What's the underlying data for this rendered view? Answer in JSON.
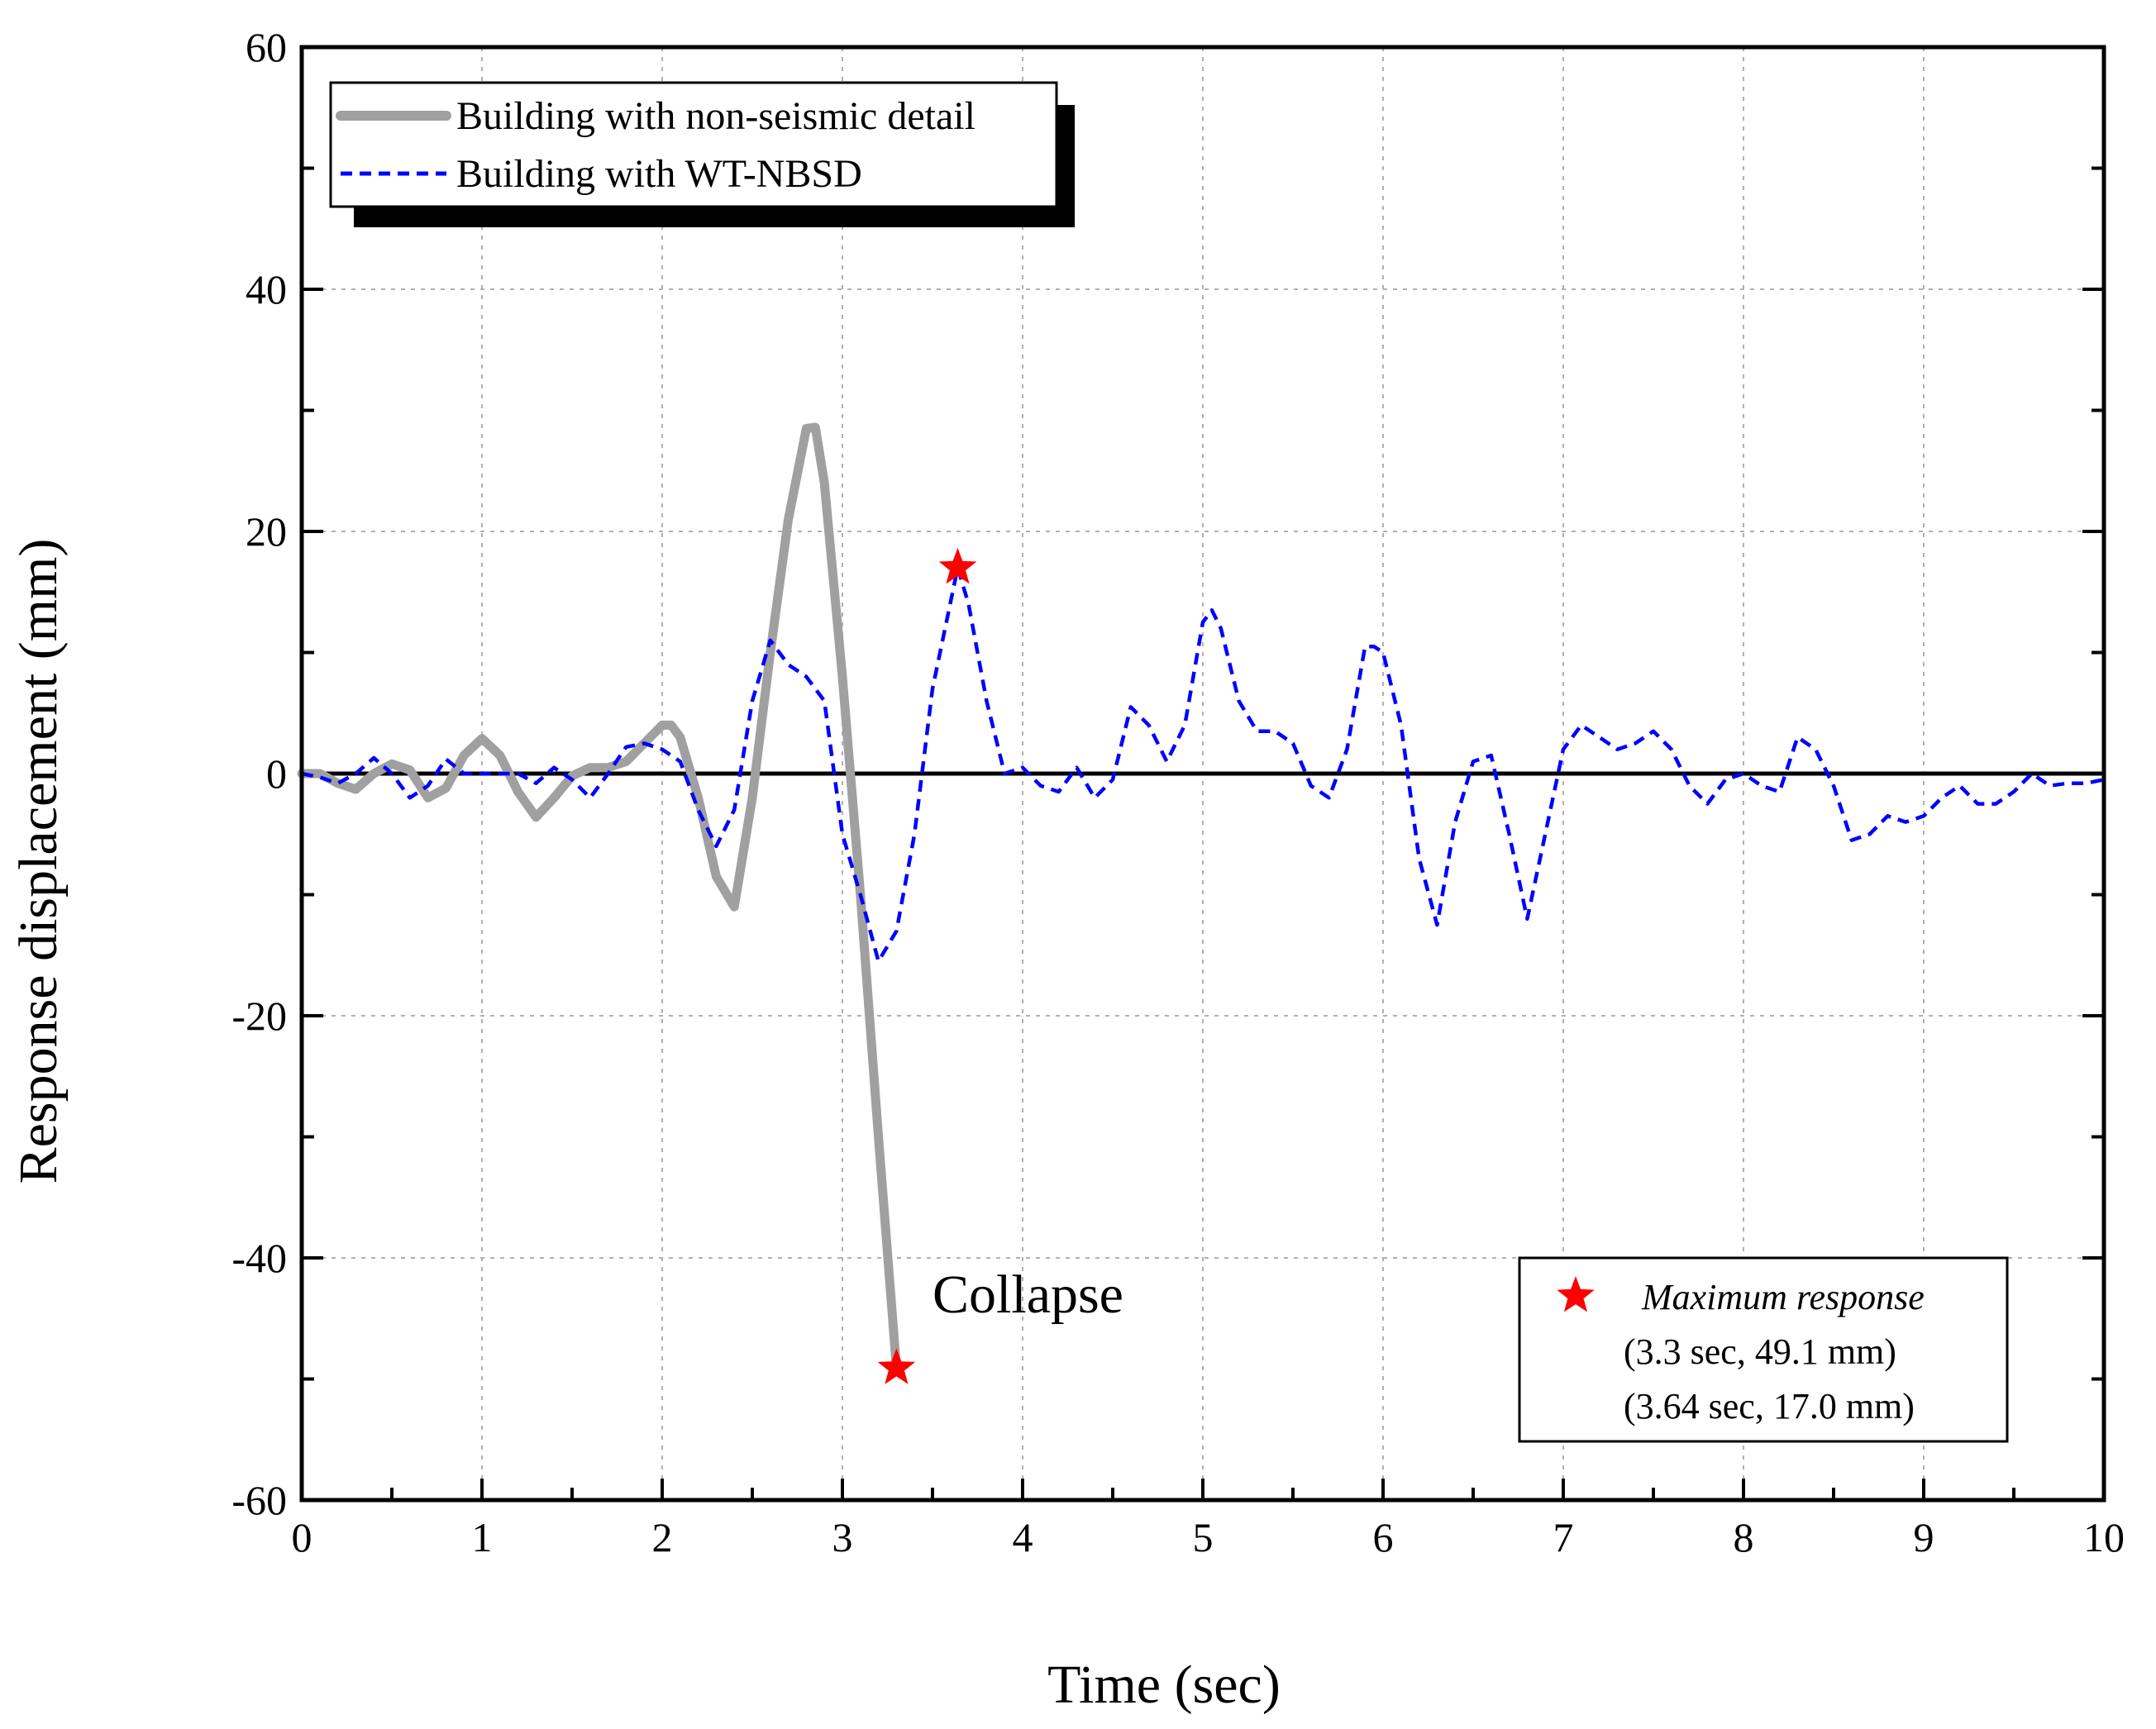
{
  "chart_data": {
    "type": "line",
    "title": "",
    "xlabel": "Time (sec)",
    "ylabel": "Response displacement (mm)",
    "xlim": [
      0,
      10
    ],
    "ylim": [
      -60,
      60
    ],
    "x_ticks": [
      0,
      1,
      2,
      3,
      4,
      5,
      6,
      7,
      8,
      9,
      10
    ],
    "y_ticks": [
      -60,
      -40,
      -20,
      0,
      20,
      40,
      60
    ],
    "x_tick_labels": [
      "0",
      "1",
      "2",
      "3",
      "4",
      "5",
      "6",
      "7",
      "8",
      "9",
      "10"
    ],
    "y_tick_labels": [
      "-60",
      "-40",
      "-20",
      "0",
      "20",
      "40",
      "60"
    ],
    "grid": true,
    "zero_line": true,
    "legend_position": "top-left",
    "series": [
      {
        "name": "Building with non-seismic detail",
        "color": "#a0a0a0",
        "style": "solid",
        "x": [
          0,
          0.1,
          0.2,
          0.3,
          0.4,
          0.5,
          0.6,
          0.7,
          0.8,
          0.9,
          1.0,
          1.1,
          1.2,
          1.3,
          1.4,
          1.5,
          1.6,
          1.7,
          1.8,
          1.9,
          2.0,
          2.05,
          2.1,
          2.2,
          2.3,
          2.4,
          2.5,
          2.6,
          2.7,
          2.8,
          2.85,
          2.9,
          3.0,
          3.1,
          3.2,
          3.3
        ],
        "y": [
          0,
          0,
          -0.8,
          -1.3,
          0,
          0.8,
          0.3,
          -2.0,
          -1.2,
          1.5,
          2.9,
          1.5,
          -1.5,
          -3.6,
          -2.0,
          -0.2,
          0.5,
          0.5,
          1.0,
          2.5,
          4.0,
          4.0,
          3.0,
          -2.0,
          -8.5,
          -11.0,
          -2.0,
          10.0,
          21.0,
          28.5,
          28.6,
          24.0,
          8.0,
          -10.0,
          -30.0,
          -49.1
        ]
      },
      {
        "name": "Building with WT-NBSD",
        "color": "#0000ff",
        "style": "dashed",
        "x": [
          0,
          0.1,
          0.2,
          0.3,
          0.4,
          0.5,
          0.6,
          0.7,
          0.8,
          0.9,
          1.0,
          1.1,
          1.2,
          1.3,
          1.4,
          1.5,
          1.6,
          1.7,
          1.8,
          1.9,
          2.0,
          2.1,
          2.2,
          2.3,
          2.4,
          2.5,
          2.6,
          2.65,
          2.7,
          2.8,
          2.9,
          3.0,
          3.1,
          3.2,
          3.3,
          3.4,
          3.5,
          3.64,
          3.7,
          3.8,
          3.9,
          4.0,
          4.1,
          4.2,
          4.3,
          4.4,
          4.5,
          4.6,
          4.7,
          4.8,
          4.9,
          5.0,
          5.05,
          5.1,
          5.2,
          5.3,
          5.4,
          5.5,
          5.6,
          5.7,
          5.8,
          5.9,
          5.95,
          6.0,
          6.1,
          6.2,
          6.3,
          6.4,
          6.5,
          6.6,
          6.7,
          6.8,
          6.9,
          7.0,
          7.1,
          7.2,
          7.3,
          7.4,
          7.5,
          7.6,
          7.7,
          7.8,
          7.9,
          8.0,
          8.1,
          8.2,
          8.3,
          8.4,
          8.5,
          8.6,
          8.7,
          8.8,
          8.9,
          9.0,
          9.1,
          9.2,
          9.3,
          9.4,
          9.5,
          9.6,
          9.7,
          9.8,
          9.9,
          10.0
        ],
        "y": [
          0,
          -0.3,
          -0.8,
          0,
          1.3,
          0,
          -2.0,
          -1.0,
          1.2,
          0,
          0,
          0,
          0,
          -0.8,
          0.5,
          -0.5,
          -2.0,
          0,
          2.2,
          2.5,
          2.0,
          1.0,
          -3.0,
          -6.0,
          -3.0,
          6.0,
          11.0,
          10.0,
          9.0,
          8.0,
          6.0,
          -5.0,
          -10.0,
          -15.5,
          -13.0,
          -5.0,
          7.0,
          17.0,
          14.0,
          6.0,
          0,
          0.5,
          -1.0,
          -1.5,
          0.5,
          -2.0,
          -0.5,
          5.5,
          4.0,
          1.0,
          4.0,
          12.5,
          13.5,
          12.0,
          6.0,
          3.5,
          3.5,
          2.5,
          -1.0,
          -2.0,
          2.0,
          10.5,
          10.5,
          10.0,
          4.0,
          -7.0,
          -12.5,
          -4.0,
          1.0,
          1.5,
          -5.0,
          -12.0,
          -5.0,
          2.0,
          4.0,
          3.0,
          2.0,
          2.5,
          3.5,
          2.0,
          -1.0,
          -2.5,
          -0.5,
          0,
          -1.0,
          -1.5,
          3.0,
          2.0,
          -1.0,
          -5.5,
          -5.0,
          -3.5,
          -4.0,
          -3.5,
          -2.0,
          -1.0,
          -2.5,
          -2.5,
          -1.5,
          0,
          -1.0,
          -0.8,
          -0.8,
          -0.5
        ]
      }
    ],
    "max_response_points": [
      {
        "x": 3.3,
        "y": -49.1,
        "color": "#ff0000"
      },
      {
        "x": 3.64,
        "y": 17.0,
        "color": "#ff0000"
      }
    ],
    "annotations": {
      "collapse_label": "Collapse",
      "collapse_x": 3.5,
      "collapse_y": -44.5
    },
    "max_box": {
      "title": "Maximum response",
      "line1": "(3.3 sec, 49.1 mm)",
      "line2": "(3.64 sec, 17.0 mm)",
      "star_color": "#ff0000"
    }
  }
}
